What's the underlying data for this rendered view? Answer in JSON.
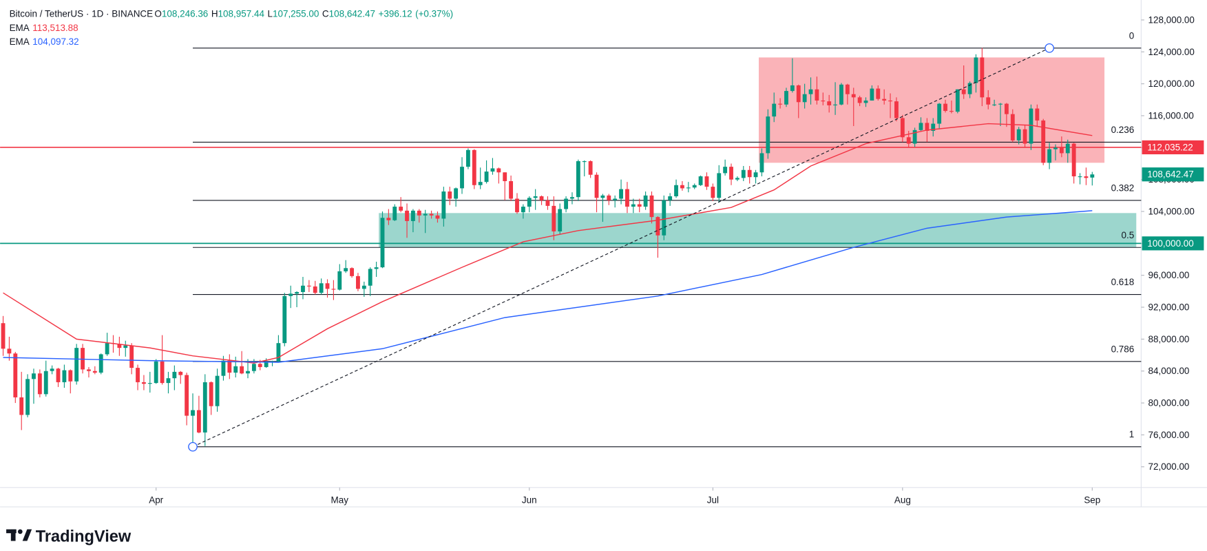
{
  "chart_data": {
    "type": "candlestick",
    "symbol": "Bitcoin / TetherUS · 1D · BINANCE",
    "ohlc": [
      {
        "name": "O",
        "value": 108246.36,
        "label": "108,246.36"
      },
      {
        "name": "H",
        "value": 108957.44,
        "label": "108,957.44"
      },
      {
        "name": "L",
        "value": 107255,
        "label": "107,255.00"
      },
      {
        "name": "C",
        "value": 108642.47,
        "label": "108,642.47"
      }
    ],
    "change": {
      "value": 396.12,
      "label": "+396.12"
    },
    "change_pct": {
      "value": 0.37,
      "label": "(+0.37%)"
    },
    "up_color": "#089981",
    "down_color": "#f23645",
    "xlim": [
      -0.5,
      186
    ],
    "ylim": [
      69400,
      130500
    ],
    "xticks": [
      {
        "value": 25,
        "label": "Apr"
      },
      {
        "value": 55,
        "label": "May"
      },
      {
        "value": 86,
        "label": "Jun"
      },
      {
        "value": 116,
        "label": "Jul"
      },
      {
        "value": 147,
        "label": "Aug"
      },
      {
        "value": 178,
        "label": "Sep"
      }
    ],
    "yticks": [
      {
        "value": 72000,
        "label": "72,000.00"
      },
      {
        "value": 76000,
        "label": "76,000.00"
      },
      {
        "value": 80000,
        "label": "80,000.00"
      },
      {
        "value": 84000,
        "label": "84,000.00"
      },
      {
        "value": 88000,
        "label": "88,000.00"
      },
      {
        "value": 92000,
        "label": "92,000.00"
      },
      {
        "value": 96000,
        "label": "96,000.00"
      },
      {
        "value": 100000,
        "label": "100,000.00"
      },
      {
        "value": 104000,
        "label": "104,000.00"
      },
      {
        "value": 108000,
        "label": "108,000.00"
      },
      {
        "value": 112000,
        "label": "112,000.00"
      },
      {
        "value": 116000,
        "label": "116,000.00"
      },
      {
        "value": 120000,
        "label": "120,000.00"
      },
      {
        "value": 124000,
        "label": "124,000.00"
      },
      {
        "value": 128000,
        "label": "128,000.00"
      }
    ],
    "grid": false,
    "candles": [
      [
        90000,
        90900,
        85900,
        86800
      ],
      [
        86800,
        88300,
        85300,
        86200
      ],
      [
        86200,
        86400,
        80000,
        80700
      ],
      [
        80700,
        83900,
        76600,
        78500
      ],
      [
        78500,
        83600,
        78200,
        83000
      ],
      [
        83000,
        84300,
        79900,
        83700
      ],
      [
        83700,
        84200,
        80700,
        81100
      ],
      [
        81100,
        85300,
        80800,
        84000
      ],
      [
        84000,
        84700,
        83600,
        84300
      ],
      [
        84300,
        84400,
        82000,
        82600
      ],
      [
        82600,
        84800,
        81900,
        84100
      ],
      [
        84100,
        84200,
        81200,
        82700
      ],
      [
        82700,
        87400,
        82300,
        86900
      ],
      [
        86900,
        87400,
        83700,
        84200
      ],
      [
        84200,
        84500,
        83200,
        84000
      ],
      [
        84000,
        84600,
        83600,
        83800
      ],
      [
        83800,
        86200,
        83600,
        86100
      ],
      [
        86100,
        88800,
        85900,
        87500
      ],
      [
        87500,
        88500,
        86300,
        87400
      ],
      [
        87400,
        88300,
        85900,
        86900
      ],
      [
        86900,
        87800,
        85800,
        87200
      ],
      [
        87200,
        87500,
        83600,
        84400
      ],
      [
        84400,
        84800,
        81600,
        82600
      ],
      [
        82600,
        83500,
        81600,
        82400
      ],
      [
        82400,
        83900,
        81300,
        82500
      ],
      [
        82500,
        85500,
        82400,
        85200
      ],
      [
        85200,
        88500,
        82300,
        82500
      ],
      [
        82500,
        83900,
        81200,
        83100
      ],
      [
        83100,
        84700,
        81600,
        83900
      ],
      [
        83900,
        84000,
        82400,
        83500
      ],
      [
        83500,
        83800,
        77200,
        78400
      ],
      [
        78400,
        81200,
        74500,
        79100
      ],
      [
        79100,
        80900,
        76200,
        76300
      ],
      [
        76300,
        83600,
        74600,
        82600
      ],
      [
        82600,
        82700,
        78500,
        79600
      ],
      [
        79600,
        84300,
        78900,
        83400
      ],
      [
        83400,
        85900,
        82800,
        85300
      ],
      [
        85300,
        86100,
        83000,
        83800
      ],
      [
        83800,
        85800,
        83200,
        84600
      ],
      [
        84600,
        86500,
        83600,
        83700
      ],
      [
        83700,
        85500,
        83100,
        84000
      ],
      [
        84000,
        85500,
        83700,
        84900
      ],
      [
        84900,
        85400,
        84100,
        84500
      ],
      [
        84500,
        85600,
        84400,
        85100
      ],
      [
        85100,
        85300,
        84600,
        85200
      ],
      [
        85200,
        88500,
        85100,
        87500
      ],
      [
        87500,
        93800,
        87100,
        93400
      ],
      [
        93400,
        94700,
        91900,
        93700
      ],
      [
        93700,
        94000,
        92000,
        93900
      ],
      [
        93900,
        95800,
        93000,
        94700
      ],
      [
        94700,
        95400,
        93900,
        94600
      ],
      [
        94600,
        95300,
        93600,
        93800
      ],
      [
        93800,
        95600,
        93600,
        95000
      ],
      [
        95000,
        95500,
        93200,
        94300
      ],
      [
        94300,
        95400,
        92900,
        94200
      ],
      [
        94200,
        97400,
        94100,
        96500
      ],
      [
        96500,
        97900,
        96300,
        96900
      ],
      [
        96900,
        97000,
        95700,
        95900
      ],
      [
        95900,
        96300,
        94000,
        94300
      ],
      [
        94300,
        95200,
        93300,
        94700
      ],
      [
        94700,
        97000,
        93400,
        96800
      ],
      [
        96800,
        97700,
        95800,
        97000
      ],
      [
        97000,
        104000,
        96900,
        103200
      ],
      [
        103200,
        104300,
        102300,
        102900
      ],
      [
        102900,
        104900,
        102800,
        104600
      ],
      [
        104600,
        105800,
        103900,
        104100
      ],
      [
        104100,
        105000,
        100700,
        102800
      ],
      [
        102800,
        104300,
        101400,
        104100
      ],
      [
        104100,
        104300,
        102600,
        103500
      ],
      [
        103500,
        104200,
        101300,
        103700
      ],
      [
        103700,
        104100,
        103100,
        103500
      ],
      [
        103500,
        104000,
        102600,
        103100
      ],
      [
        103100,
        107100,
        102100,
        106500
      ],
      [
        106500,
        107100,
        104800,
        105600
      ],
      [
        105600,
        107000,
        104600,
        106900
      ],
      [
        106900,
        110800,
        106200,
        109600
      ],
      [
        109600,
        111900,
        109300,
        111700
      ],
      [
        111700,
        111800,
        106800,
        107300
      ],
      [
        107300,
        109500,
        106800,
        107700
      ],
      [
        107700,
        110400,
        107500,
        109000
      ],
      [
        109000,
        110700,
        108600,
        109400
      ],
      [
        109400,
        109500,
        107500,
        108900
      ],
      [
        108900,
        108900,
        105400,
        107800
      ],
      [
        107800,
        108500,
        105300,
        105600
      ],
      [
        105600,
        106300,
        103700,
        103900
      ],
      [
        103900,
        104900,
        103100,
        104600
      ],
      [
        104600,
        105900,
        103900,
        105700
      ],
      [
        105700,
        106800,
        104200,
        105900
      ],
      [
        105900,
        106000,
        104800,
        105400
      ],
      [
        105400,
        105900,
        104200,
        104700
      ],
      [
        104700,
        105900,
        100400,
        101500
      ],
      [
        101500,
        105000,
        101100,
        104300
      ],
      [
        104300,
        105900,
        103900,
        105600
      ],
      [
        105600,
        106400,
        104900,
        105800
      ],
      [
        105800,
        110500,
        105300,
        110300
      ],
      [
        110300,
        110400,
        108400,
        110300
      ],
      [
        110300,
        110400,
        108200,
        108600
      ],
      [
        108600,
        108900,
        103900,
        105700
      ],
      [
        105700,
        106200,
        102700,
        106000
      ],
      [
        106000,
        106200,
        104800,
        105400
      ],
      [
        105400,
        106000,
        104500,
        105600
      ],
      [
        105600,
        108000,
        104900,
        106800
      ],
      [
        106800,
        107700,
        103800,
        104600
      ],
      [
        104600,
        105600,
        103800,
        104900
      ],
      [
        104900,
        105600,
        103900,
        104600
      ],
      [
        104600,
        106500,
        104200,
        106000
      ],
      [
        106000,
        106500,
        102500,
        103300
      ],
      [
        103300,
        103400,
        98200,
        101000
      ],
      [
        101000,
        106000,
        100400,
        105400
      ],
      [
        105400,
        106300,
        104700,
        105900
      ],
      [
        105900,
        108000,
        105700,
        107300
      ],
      [
        107300,
        107800,
        106600,
        106900
      ],
      [
        106900,
        107700,
        106400,
        107000
      ],
      [
        107000,
        107500,
        106800,
        107300
      ],
      [
        107300,
        108500,
        107200,
        108400
      ],
      [
        108400,
        108900,
        106700,
        107100
      ],
      [
        107100,
        107500,
        105300,
        105700
      ],
      [
        105700,
        109800,
        105100,
        108800
      ],
      [
        108800,
        110500,
        108500,
        109600
      ],
      [
        109600,
        110000,
        107300,
        108000
      ],
      [
        108000,
        108400,
        107800,
        108200
      ],
      [
        108200,
        109700,
        107800,
        109200
      ],
      [
        109200,
        109700,
        107500,
        108300
      ],
      [
        108300,
        109200,
        107500,
        108900
      ],
      [
        108900,
        111900,
        108400,
        111300
      ],
      [
        111300,
        116800,
        110600,
        115900
      ],
      [
        115900,
        118900,
        115200,
        117500
      ],
      [
        117500,
        118200,
        116900,
        117400
      ],
      [
        117400,
        119500,
        117100,
        119100
      ],
      [
        119100,
        123200,
        118900,
        119800
      ],
      [
        119800,
        119900,
        115700,
        117700
      ],
      [
        117700,
        120000,
        116900,
        118700
      ],
      [
        118700,
        120800,
        117400,
        119300
      ],
      [
        119300,
        120900,
        117400,
        117900
      ],
      [
        117900,
        118900,
        117300,
        117800
      ],
      [
        117800,
        118600,
        116400,
        117300
      ],
      [
        117300,
        120200,
        116100,
        117400
      ],
      [
        117400,
        120100,
        117300,
        119900
      ],
      [
        119900,
        120000,
        117400,
        118700
      ],
      [
        118700,
        119500,
        114700,
        118300
      ],
      [
        118300,
        118500,
        117200,
        117600
      ],
      [
        117600,
        118300,
        117100,
        117900
      ],
      [
        117900,
        119800,
        117900,
        119400
      ],
      [
        119400,
        119800,
        117900,
        118100
      ],
      [
        118100,
        119300,
        117400,
        117900
      ],
      [
        117900,
        118800,
        115700,
        117800
      ],
      [
        117800,
        118300,
        115300,
        115700
      ],
      [
        115700,
        116100,
        112700,
        113300
      ],
      [
        113300,
        114100,
        112000,
        112500
      ],
      [
        112500,
        114500,
        112100,
        114200
      ],
      [
        114200,
        115800,
        114100,
        115100
      ],
      [
        115100,
        115700,
        112700,
        114100
      ],
      [
        114100,
        115700,
        113400,
        115000
      ],
      [
        115000,
        117600,
        114300,
        117500
      ],
      [
        117500,
        118000,
        116400,
        116600
      ],
      [
        116600,
        117900,
        116300,
        116500
      ],
      [
        116500,
        119300,
        116300,
        119300
      ],
      [
        119300,
        122300,
        118100,
        118700
      ],
      [
        118700,
        120300,
        118200,
        120100
      ],
      [
        120100,
        123700,
        118900,
        123300
      ],
      [
        123300,
        124500,
        117200,
        118300
      ],
      [
        118300,
        119200,
        116800,
        117400
      ],
      [
        117400,
        118000,
        117200,
        117400
      ],
      [
        117400,
        117600,
        114700,
        117500
      ],
      [
        117500,
        117600,
        114600,
        116200
      ],
      [
        116200,
        116800,
        112700,
        112900
      ],
      [
        112900,
        114600,
        112400,
        114300
      ],
      [
        114300,
        114800,
        112000,
        112500
      ],
      [
        112500,
        117400,
        111700,
        116900
      ],
      [
        116900,
        117400,
        114600,
        115400
      ],
      [
        115400,
        115600,
        109800,
        110100
      ],
      [
        110100,
        112600,
        109300,
        111800
      ],
      [
        111800,
        112400,
        110400,
        112000
      ],
      [
        112000,
        113400,
        110800,
        111300
      ],
      [
        111300,
        113000,
        110100,
        112500
      ],
      [
        112500,
        112600,
        107500,
        108400
      ],
      [
        108400,
        108800,
        107400,
        108400
      ],
      [
        108400,
        109500,
        107300,
        108200
      ],
      [
        108246.36,
        108957.44,
        107255,
        108642.47
      ]
    ],
    "series": [
      {
        "name": "EMA",
        "color": "#f23645",
        "legend_value": {
          "value": 113513.88,
          "label": "113,513.88"
        },
        "x": [
          0,
          12,
          24,
          31,
          41,
          45,
          53,
          62,
          75,
          85,
          94,
          107,
          119,
          126,
          132,
          141,
          151,
          161,
          168,
          178
        ],
        "values": [
          93800,
          88000,
          86900,
          85900,
          85000,
          85700,
          89300,
          92700,
          97000,
          100200,
          101600,
          102900,
          104500,
          106700,
          109700,
          112500,
          114200,
          115000,
          114800,
          113513.88
        ]
      },
      {
        "name": "EMA",
        "color": "#2962ff",
        "legend_value": {
          "value": 104097.32,
          "label": "104,097.32"
        },
        "x": [
          0,
          24,
          45,
          62,
          82,
          107,
          124,
          139,
          151,
          164,
          178
        ],
        "values": [
          85700,
          85300,
          85100,
          86800,
          90700,
          93400,
          96100,
          99500,
          101900,
          103300,
          104097.32
        ]
      }
    ],
    "zones": [
      {
        "x": [
          123.5,
          180
        ],
        "y": [
          110100,
          123300
        ],
        "color": "rgba(242,54,69,0.38)"
      },
      {
        "x": [
          61.4,
          185.2
        ],
        "y": [
          99500,
          103800
        ],
        "color": "rgba(8,153,129,0.4)"
      }
    ],
    "fib": {
      "anchors": {
        "x": [
          31,
          171
        ],
        "values": [
          74508,
          124474
        ]
      },
      "levels": [
        0,
        0.236,
        0.382,
        0.5,
        0.618,
        0.786,
        1
      ]
    },
    "price_lines": [
      {
        "value": 112035.22,
        "label": "112,035.22",
        "color": "#f23645"
      },
      {
        "value": 100000,
        "label": "100,000.00",
        "color": "#089981"
      }
    ],
    "last_price": {
      "value": 108642.47,
      "label": "108,642.47",
      "color": "#089981"
    },
    "branding": "TradingView"
  }
}
